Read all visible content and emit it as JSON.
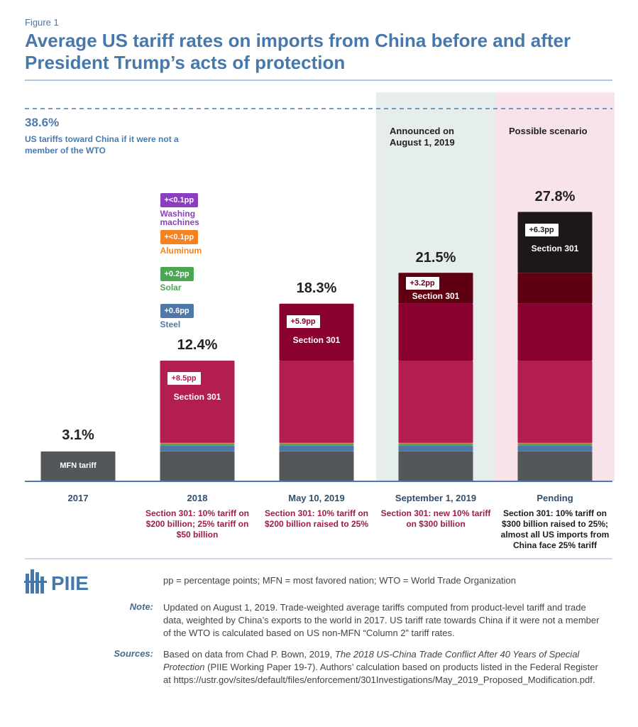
{
  "figure_label": "Figure 1",
  "title": "Average US tariff rates on imports from China before and after President Trump’s acts of protection",
  "chart_data": {
    "type": "stacked_bar",
    "categories": [
      "2017",
      "2018",
      "May 10, 2019",
      "September 1, 2019",
      "Pending"
    ],
    "category_notes": [
      null,
      "Section 301: 10% tariff on $200 billion; 25% tariff on $50 billion",
      "Section 301: 10% tariff on $200 billion raised to 25%",
      "Section 301: new 10% tariff on $300 billion",
      "Section 301: 10% tariff on $300 billion raised to 25%; almost all US imports from China face 25% tariff"
    ],
    "category_note_colors": [
      null,
      "#9e1c45",
      "#9e1c45",
      "#9e1c45",
      "#1c1c1c"
    ],
    "column_highlights": [
      null,
      null,
      null,
      {
        "label": "Announced on August 1, 2019",
        "color": "#e6eeed"
      },
      {
        "label": "Possible scenario",
        "color": "#f8e3eb"
      }
    ],
    "ylim": [
      0,
      40
    ],
    "series": [
      {
        "name": "MFN tariff",
        "color": "#53575a",
        "label_position": "inside",
        "values": [
          3.1,
          3.1,
          3.1,
          3.1,
          3.1
        ]
      },
      {
        "name": "Steel",
        "color": "#4f78a8",
        "label_position": "above",
        "values": [
          null,
          0.6,
          0.6,
          0.6,
          0.6
        ],
        "value_labels": [
          null,
          "+0.6pp",
          null,
          null,
          null
        ]
      },
      {
        "name": "Solar",
        "color": "#4aa653",
        "label_position": "above",
        "values": [
          null,
          0.2,
          0.2,
          0.2,
          0.2
        ],
        "value_labels": [
          null,
          "+0.2pp",
          null,
          null,
          null
        ]
      },
      {
        "name": "Aluminum",
        "color": "#f58220",
        "label_position": "above",
        "values": [
          null,
          0.05,
          0.05,
          0.05,
          0.05
        ],
        "value_labels": [
          null,
          "+<0.1pp",
          null,
          null,
          null
        ]
      },
      {
        "name": "Washing machines",
        "color": "#8b3fc0",
        "label_position": "above",
        "values": [
          null,
          0.05,
          0.05,
          0.05,
          0.05
        ],
        "value_labels": [
          null,
          "+<0.1pp",
          null,
          null,
          null
        ]
      },
      {
        "name": "Section 301",
        "color": "#b31e50",
        "label_position": "inside",
        "values": [
          null,
          8.5,
          8.5,
          8.5,
          8.5
        ],
        "value_labels": [
          null,
          "+8.5pp",
          null,
          null,
          null
        ]
      },
      {
        "name": "Section 301",
        "color": "#8a0030",
        "label_position": "inside",
        "values": [
          null,
          null,
          5.9,
          5.9,
          5.9
        ],
        "value_labels": [
          null,
          null,
          "+5.9pp",
          null,
          null
        ]
      },
      {
        "name": "Section 301",
        "color": "#5e0012",
        "label_position": "inside",
        "values": [
          null,
          null,
          null,
          3.2,
          3.2
        ],
        "value_labels": [
          null,
          null,
          null,
          "+3.2pp",
          null
        ]
      },
      {
        "name": "Section 301",
        "color": "#1c1819",
        "label_position": "inside",
        "values": [
          null,
          null,
          null,
          null,
          6.3
        ],
        "value_labels": [
          null,
          null,
          null,
          null,
          "+6.3pp"
        ]
      }
    ],
    "totals": [
      3.1,
      12.4,
      18.3,
      21.5,
      27.8
    ],
    "total_labels": [
      "3.1%",
      "12.4%",
      "18.3%",
      "21.5%",
      "27.8%"
    ],
    "reference_line": {
      "value": 38.6,
      "label": "38.6%",
      "text": "US tariffs toward China if it were not a member of the WTO",
      "color": "#4a7bb0"
    }
  },
  "footer": {
    "logo": "PIIE",
    "abbreviations": "pp = percentage points; MFN = most favored nation; WTO = World Trade Organization",
    "note_label": "Note:",
    "note": "Updated on August 1, 2019. Trade-weighted average tariffs computed from product-level tariff and trade data, weighted by China’s exports to the world in 2017. US tariff rate towards China if it were not a member of the WTO is calculated based on US non-MFN “Column 2” tariff rates.",
    "sources_label": "Sources:",
    "sources": [
      "Based on data from Chad P. Bown, 2019, ",
      "The 2018 US-China Trade Conflict After 40 Years of Special Protection",
      " (PIIE Working Paper 19-7). Authors’ calculation based on products listed in the Federal Register at https://ustr.gov/sites/default/files/enforcement/301Investigations/May_2019_Proposed_Modification.pdf."
    ]
  }
}
